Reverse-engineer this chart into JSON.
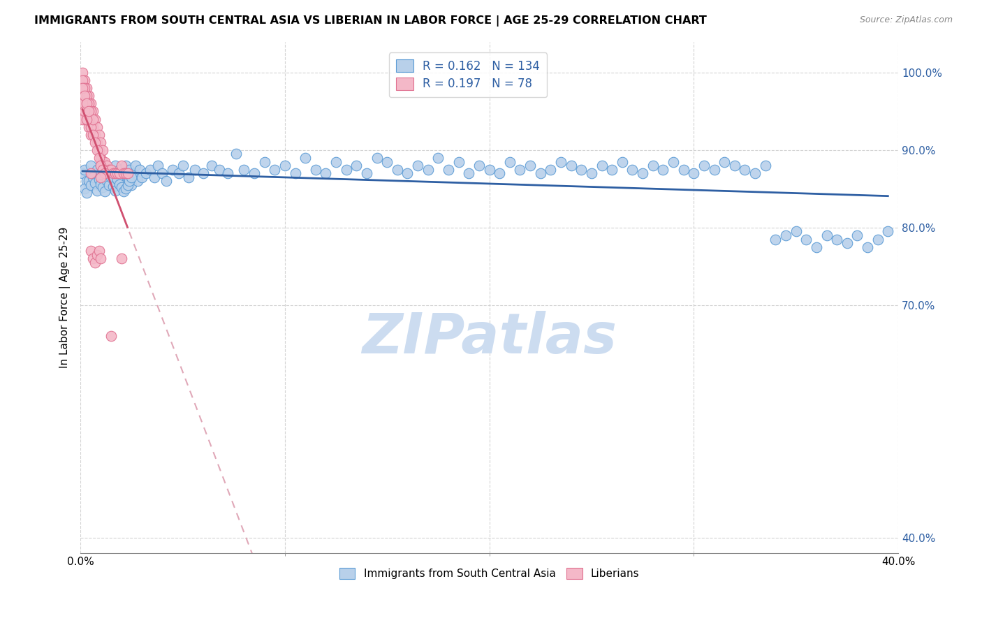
{
  "title": "IMMIGRANTS FROM SOUTH CENTRAL ASIA VS LIBERIAN IN LABOR FORCE | AGE 25-29 CORRELATION CHART",
  "source": "Source: ZipAtlas.com",
  "ylabel": "In Labor Force | Age 25-29",
  "xlim": [
    0.0,
    0.4
  ],
  "ylim": [
    0.38,
    1.04
  ],
  "R_blue": 0.162,
  "N_blue": 134,
  "R_pink": 0.197,
  "N_pink": 78,
  "blue_scatter_color": "#b8d0ea",
  "blue_edge_color": "#5b9bd5",
  "pink_scatter_color": "#f4b8c8",
  "pink_edge_color": "#e07090",
  "blue_line_color": "#2e5fa3",
  "pink_line_color": "#d05070",
  "pink_dash_color": "#e0a8b8",
  "text_blue_color": "#2e5fa3",
  "watermark_color": "#ccdcf0",
  "legend_label_blue": "Immigrants from South Central Asia",
  "legend_label_pink": "Liberians",
  "ytick_positions": [
    1.0,
    0.9,
    0.8,
    0.7,
    0.4
  ],
  "ytick_labels": [
    "100.0%",
    "90.0%",
    "80.0%",
    "70.0%",
    "40.0%"
  ],
  "xtick_positions": [
    0.0,
    0.4
  ],
  "xtick_labels": [
    "0.0%",
    "40.0%"
  ],
  "grid_xticks": [
    0.0,
    0.1,
    0.2,
    0.3,
    0.4
  ],
  "blue_x": [
    0.001,
    0.002,
    0.003,
    0.004,
    0.005,
    0.006,
    0.007,
    0.008,
    0.009,
    0.01,
    0.011,
    0.012,
    0.013,
    0.014,
    0.015,
    0.016,
    0.017,
    0.018,
    0.019,
    0.02,
    0.021,
    0.022,
    0.023,
    0.024,
    0.025,
    0.026,
    0.027,
    0.028,
    0.029,
    0.03,
    0.032,
    0.034,
    0.036,
    0.038,
    0.04,
    0.042,
    0.045,
    0.048,
    0.05,
    0.053,
    0.056,
    0.06,
    0.064,
    0.068,
    0.072,
    0.076,
    0.08,
    0.085,
    0.09,
    0.095,
    0.1,
    0.105,
    0.11,
    0.115,
    0.12,
    0.125,
    0.13,
    0.135,
    0.14,
    0.145,
    0.15,
    0.155,
    0.16,
    0.165,
    0.17,
    0.175,
    0.18,
    0.185,
    0.19,
    0.195,
    0.2,
    0.205,
    0.21,
    0.215,
    0.22,
    0.225,
    0.23,
    0.235,
    0.24,
    0.245,
    0.25,
    0.255,
    0.26,
    0.265,
    0.27,
    0.275,
    0.28,
    0.285,
    0.29,
    0.295,
    0.3,
    0.305,
    0.31,
    0.315,
    0.32,
    0.325,
    0.33,
    0.335,
    0.34,
    0.345,
    0.35,
    0.355,
    0.36,
    0.365,
    0.37,
    0.375,
    0.38,
    0.385,
    0.39,
    0.395,
    0.002,
    0.003,
    0.004,
    0.005,
    0.006,
    0.007,
    0.008,
    0.009,
    0.01,
    0.011,
    0.012,
    0.013,
    0.014,
    0.015,
    0.016,
    0.017,
    0.018,
    0.019,
    0.02,
    0.021,
    0.022,
    0.023,
    0.024,
    0.025
  ],
  "blue_y": [
    0.87,
    0.875,
    0.86,
    0.855,
    0.88,
    0.865,
    0.87,
    0.875,
    0.855,
    0.88,
    0.865,
    0.87,
    0.86,
    0.875,
    0.855,
    0.87,
    0.88,
    0.865,
    0.875,
    0.86,
    0.87,
    0.88,
    0.865,
    0.875,
    0.855,
    0.87,
    0.88,
    0.86,
    0.875,
    0.865,
    0.87,
    0.875,
    0.865,
    0.88,
    0.87,
    0.86,
    0.875,
    0.87,
    0.88,
    0.865,
    0.875,
    0.87,
    0.88,
    0.875,
    0.87,
    0.895,
    0.875,
    0.87,
    0.885,
    0.875,
    0.88,
    0.87,
    0.89,
    0.875,
    0.87,
    0.885,
    0.875,
    0.88,
    0.87,
    0.89,
    0.885,
    0.875,
    0.87,
    0.88,
    0.875,
    0.89,
    0.875,
    0.885,
    0.87,
    0.88,
    0.875,
    0.87,
    0.885,
    0.875,
    0.88,
    0.87,
    0.875,
    0.885,
    0.88,
    0.875,
    0.87,
    0.88,
    0.875,
    0.885,
    0.875,
    0.87,
    0.88,
    0.875,
    0.885,
    0.875,
    0.87,
    0.88,
    0.875,
    0.885,
    0.88,
    0.875,
    0.87,
    0.88,
    0.785,
    0.79,
    0.795,
    0.785,
    0.775,
    0.79,
    0.785,
    0.78,
    0.79,
    0.775,
    0.785,
    0.795,
    0.85,
    0.845,
    0.86,
    0.855,
    0.865,
    0.858,
    0.848,
    0.862,
    0.856,
    0.852,
    0.847,
    0.86,
    0.855,
    0.865,
    0.853,
    0.848,
    0.862,
    0.856,
    0.852,
    0.847,
    0.85,
    0.855,
    0.86,
    0.865
  ],
  "pink_x": [
    0.001,
    0.001,
    0.001,
    0.002,
    0.002,
    0.002,
    0.003,
    0.003,
    0.003,
    0.004,
    0.004,
    0.004,
    0.005,
    0.005,
    0.005,
    0.006,
    0.006,
    0.007,
    0.007,
    0.008,
    0.008,
    0.009,
    0.009,
    0.01,
    0.01,
    0.011,
    0.011,
    0.012,
    0.012,
    0.013,
    0.014,
    0.015,
    0.016,
    0.017,
    0.018,
    0.019,
    0.02,
    0.021,
    0.022,
    0.023,
    0.001,
    0.001,
    0.001,
    0.002,
    0.002,
    0.002,
    0.003,
    0.003,
    0.004,
    0.004,
    0.005,
    0.005,
    0.006,
    0.006,
    0.007,
    0.008,
    0.009,
    0.01,
    0.011,
    0.012,
    0.001,
    0.001,
    0.001,
    0.002,
    0.002,
    0.003,
    0.003,
    0.004,
    0.005,
    0.006,
    0.007,
    0.008,
    0.009,
    0.01,
    0.005,
    0.01,
    0.015,
    0.02
  ],
  "pink_y": [
    1.0,
    0.98,
    0.96,
    0.99,
    0.97,
    0.95,
    0.98,
    0.96,
    0.94,
    0.97,
    0.95,
    0.93,
    0.96,
    0.94,
    0.92,
    0.95,
    0.93,
    0.94,
    0.92,
    0.93,
    0.91,
    0.92,
    0.9,
    0.91,
    0.89,
    0.9,
    0.885,
    0.885,
    0.875,
    0.88,
    0.875,
    0.875,
    0.87,
    0.87,
    0.87,
    0.87,
    0.88,
    0.87,
    0.87,
    0.87,
    0.99,
    0.97,
    0.95,
    0.98,
    0.96,
    0.94,
    0.97,
    0.95,
    0.96,
    0.94,
    0.95,
    0.93,
    0.94,
    0.92,
    0.91,
    0.9,
    0.89,
    0.88,
    0.875,
    0.87,
    0.98,
    0.96,
    0.94,
    0.97,
    0.95,
    0.96,
    0.94,
    0.95,
    0.77,
    0.76,
    0.755,
    0.765,
    0.77,
    0.76,
    0.87,
    0.865,
    0.66,
    0.76
  ]
}
